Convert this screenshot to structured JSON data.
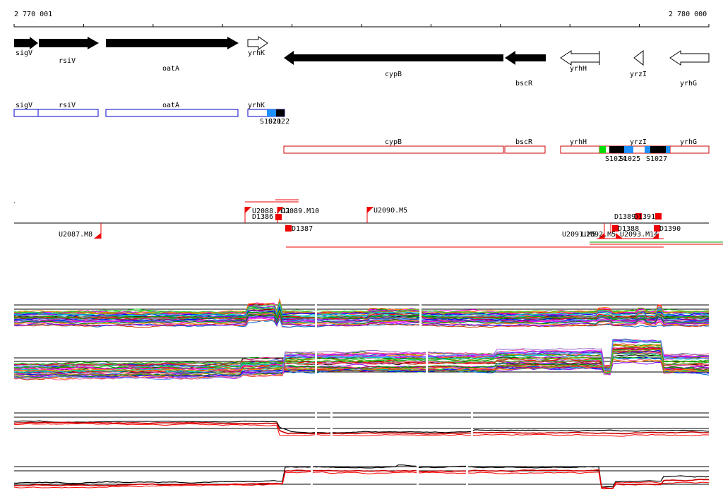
{
  "ruler": {
    "start_label": "2 770 001",
    "end_label": "2 780 000"
  },
  "genes": [
    {
      "name": "sigV",
      "strand": "+",
      "filled": true
    },
    {
      "name": "rsiV",
      "strand": "+",
      "filled": true
    },
    {
      "name": "oatA",
      "strand": "+",
      "filled": true
    },
    {
      "name": "yrhK",
      "strand": "+",
      "filled": false
    },
    {
      "name": "cypB",
      "strand": "-",
      "filled": true
    },
    {
      "name": "bscR",
      "strand": "-",
      "filled": true
    },
    {
      "name": "yrhH",
      "strand": "-",
      "filled": false
    },
    {
      "name": "yrzI",
      "strand": "-",
      "filled": false
    },
    {
      "name": "yrhG",
      "strand": "-",
      "filled": false
    }
  ],
  "transcript_boxes": [
    {
      "name": "sigV"
    },
    {
      "name": "rsiV"
    },
    {
      "name": "oatA"
    },
    {
      "name": "yrhK"
    },
    {
      "name": "cypB"
    },
    {
      "name": "bscR"
    },
    {
      "name": "yrhH"
    },
    {
      "name": "yrzI"
    },
    {
      "name": "yrhG"
    }
  ],
  "segments": [
    "S1021",
    "S1022",
    "S1024",
    "S1025",
    "S1027"
  ],
  "upshifts": [
    "U2087.M8",
    "U2088.M11",
    "U2089.M10",
    "U2090.M5",
    "U2091.M5",
    "U2092.M5",
    "U2093.M14"
  ],
  "downshifts": [
    "D1386",
    "D1387",
    "D1388",
    "D1389",
    "D1390",
    "D1391"
  ],
  "colors": {
    "forward": "#0000cc",
    "reverse": "#cc0000",
    "segment_blue": "#1e90ff",
    "segment_green": "#00dd00",
    "marker_red": "#ee0000"
  }
}
